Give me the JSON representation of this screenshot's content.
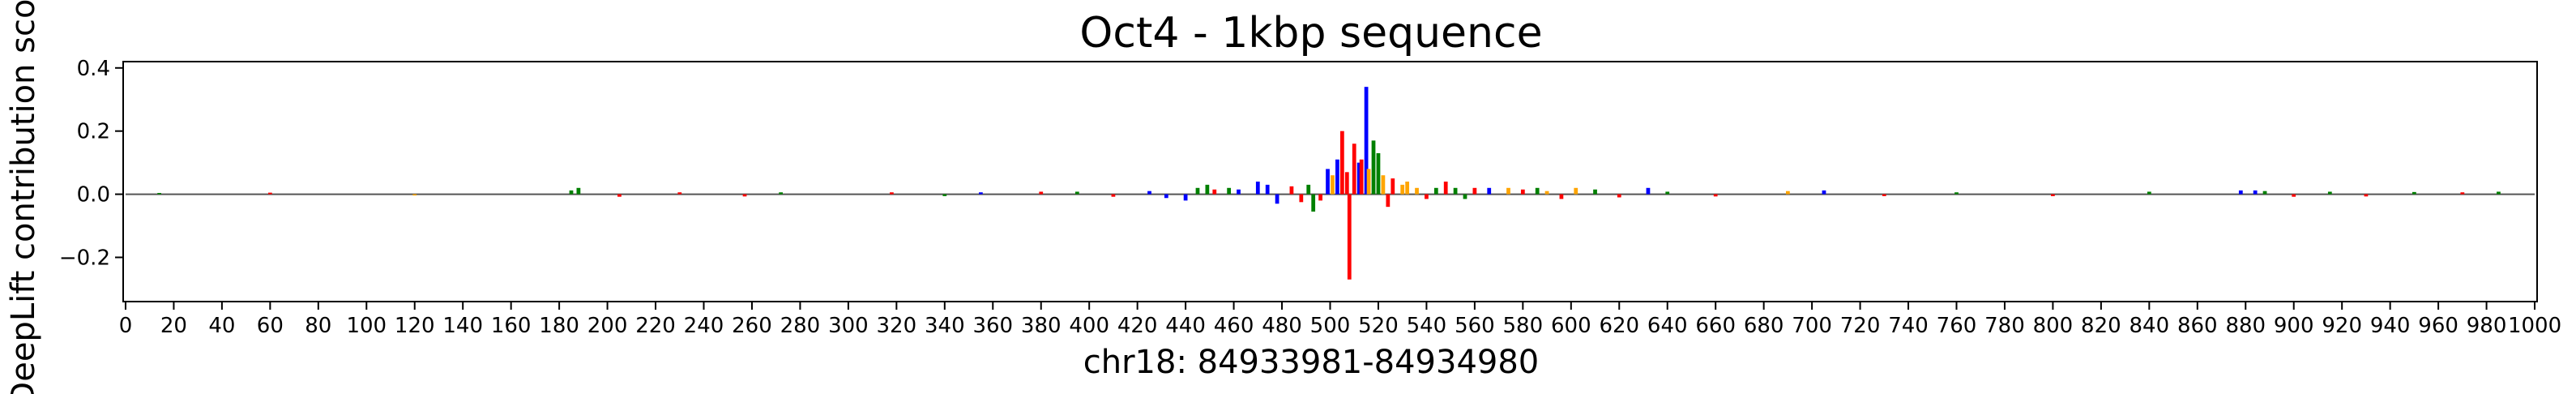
{
  "chart_data": {
    "type": "bar",
    "title": "Oct4 - 1kbp sequence",
    "xlabel": "chr18: 84933981-84934980",
    "ylabel": "DeepLift contribution score",
    "xlim": [
      -1,
      1001
    ],
    "ylim": [
      -0.34,
      0.42
    ],
    "xticks": [
      0,
      20,
      40,
      60,
      80,
      100,
      120,
      140,
      160,
      180,
      200,
      220,
      240,
      260,
      280,
      300,
      320,
      340,
      360,
      380,
      400,
      420,
      440,
      460,
      480,
      500,
      520,
      540,
      560,
      580,
      600,
      620,
      640,
      660,
      680,
      700,
      720,
      740,
      760,
      780,
      800,
      820,
      840,
      860,
      880,
      900,
      920,
      940,
      960,
      980,
      1000
    ],
    "xtick_labels": [
      "0",
      "20",
      "40",
      "60",
      "80",
      "100",
      "120",
      "140",
      "160",
      "180",
      "200",
      "220",
      "240",
      "260",
      "280",
      "300",
      "320",
      "340",
      "360",
      "380",
      "400",
      "420",
      "440",
      "460",
      "480",
      "500",
      "520",
      "540",
      "560",
      "580",
      "600",
      "620",
      "640",
      "660",
      "680",
      "700",
      "720",
      "740",
      "760",
      "780",
      "800",
      "820",
      "840",
      "860",
      "880",
      "900",
      "920",
      "940",
      "960",
      "980",
      "1000"
    ],
    "yticks": [
      -0.2,
      0.0,
      0.2,
      0.4
    ],
    "ytick_labels": [
      "−0.2",
      "0.0",
      "0.2",
      "0.4"
    ],
    "grid": false,
    "legend": "none",
    "base_colors": {
      "A": "#008000",
      "C": "#0000ff",
      "G": "#ffa500",
      "T": "#ff0000"
    },
    "series": [
      {
        "position": 14,
        "base": "A",
        "value": 0.004
      },
      {
        "position": 60,
        "base": "T",
        "value": 0.005
      },
      {
        "position": 120,
        "base": "G",
        "value": -0.004
      },
      {
        "position": 185,
        "base": "A",
        "value": 0.012
      },
      {
        "position": 188,
        "base": "A",
        "value": 0.02
      },
      {
        "position": 205,
        "base": "T",
        "value": -0.008
      },
      {
        "position": 230,
        "base": "T",
        "value": 0.006
      },
      {
        "position": 257,
        "base": "T",
        "value": -0.007
      },
      {
        "position": 272,
        "base": "A",
        "value": 0.006
      },
      {
        "position": 318,
        "base": "T",
        "value": 0.006
      },
      {
        "position": 340,
        "base": "A",
        "value": -0.006
      },
      {
        "position": 355,
        "base": "C",
        "value": 0.006
      },
      {
        "position": 380,
        "base": "T",
        "value": 0.008
      },
      {
        "position": 395,
        "base": "A",
        "value": 0.008
      },
      {
        "position": 410,
        "base": "T",
        "value": -0.008
      },
      {
        "position": 425,
        "base": "C",
        "value": 0.01
      },
      {
        "position": 432,
        "base": "C",
        "value": -0.012
      },
      {
        "position": 440,
        "base": "C",
        "value": -0.02
      },
      {
        "position": 445,
        "base": "A",
        "value": 0.02
      },
      {
        "position": 449,
        "base": "A",
        "value": 0.03
      },
      {
        "position": 452,
        "base": "T",
        "value": 0.015
      },
      {
        "position": 458,
        "base": "A",
        "value": 0.02
      },
      {
        "position": 462,
        "base": "C",
        "value": 0.015
      },
      {
        "position": 470,
        "base": "C",
        "value": 0.04
      },
      {
        "position": 474,
        "base": "C",
        "value": 0.03
      },
      {
        "position": 478,
        "base": "C",
        "value": -0.03
      },
      {
        "position": 484,
        "base": "T",
        "value": 0.025
      },
      {
        "position": 488,
        "base": "T",
        "value": -0.025
      },
      {
        "position": 491,
        "base": "A",
        "value": 0.03
      },
      {
        "position": 493,
        "base": "A",
        "value": -0.055
      },
      {
        "position": 496,
        "base": "T",
        "value": -0.02
      },
      {
        "position": 499,
        "base": "C",
        "value": 0.08
      },
      {
        "position": 501,
        "base": "G",
        "value": 0.06
      },
      {
        "position": 503,
        "base": "C",
        "value": 0.11
      },
      {
        "position": 505,
        "base": "T",
        "value": 0.2
      },
      {
        "position": 507,
        "base": "T",
        "value": 0.07
      },
      {
        "position": 508,
        "base": "T",
        "value": -0.27
      },
      {
        "position": 510,
        "base": "T",
        "value": 0.16
      },
      {
        "position": 512,
        "base": "C",
        "value": 0.1
      },
      {
        "position": 513,
        "base": "T",
        "value": 0.11
      },
      {
        "position": 515,
        "base": "C",
        "value": 0.34
      },
      {
        "position": 516,
        "base": "G",
        "value": 0.08
      },
      {
        "position": 518,
        "base": "A",
        "value": 0.17
      },
      {
        "position": 520,
        "base": "A",
        "value": 0.13
      },
      {
        "position": 522,
        "base": "G",
        "value": 0.06
      },
      {
        "position": 524,
        "base": "T",
        "value": -0.04
      },
      {
        "position": 526,
        "base": "T",
        "value": 0.05
      },
      {
        "position": 530,
        "base": "G",
        "value": 0.03
      },
      {
        "position": 532,
        "base": "G",
        "value": 0.04
      },
      {
        "position": 536,
        "base": "G",
        "value": 0.02
      },
      {
        "position": 540,
        "base": "T",
        "value": -0.015
      },
      {
        "position": 544,
        "base": "A",
        "value": 0.02
      },
      {
        "position": 548,
        "base": "T",
        "value": 0.04
      },
      {
        "position": 552,
        "base": "A",
        "value": 0.02
      },
      {
        "position": 556,
        "base": "A",
        "value": -0.015
      },
      {
        "position": 560,
        "base": "T",
        "value": 0.02
      },
      {
        "position": 566,
        "base": "C",
        "value": 0.02
      },
      {
        "position": 574,
        "base": "G",
        "value": 0.02
      },
      {
        "position": 580,
        "base": "T",
        "value": 0.015
      },
      {
        "position": 586,
        "base": "A",
        "value": 0.02
      },
      {
        "position": 590,
        "base": "G",
        "value": 0.01
      },
      {
        "position": 596,
        "base": "T",
        "value": -0.015
      },
      {
        "position": 602,
        "base": "G",
        "value": 0.02
      },
      {
        "position": 610,
        "base": "A",
        "value": 0.015
      },
      {
        "position": 620,
        "base": "T",
        "value": -0.01
      },
      {
        "position": 632,
        "base": "C",
        "value": 0.02
      },
      {
        "position": 640,
        "base": "A",
        "value": 0.008
      },
      {
        "position": 660,
        "base": "T",
        "value": -0.007
      },
      {
        "position": 690,
        "base": "G",
        "value": 0.01
      },
      {
        "position": 705,
        "base": "C",
        "value": 0.012
      },
      {
        "position": 730,
        "base": "T",
        "value": -0.006
      },
      {
        "position": 760,
        "base": "A",
        "value": 0.006
      },
      {
        "position": 800,
        "base": "T",
        "value": -0.006
      },
      {
        "position": 840,
        "base": "A",
        "value": 0.008
      },
      {
        "position": 878,
        "base": "C",
        "value": 0.012
      },
      {
        "position": 884,
        "base": "C",
        "value": 0.012
      },
      {
        "position": 888,
        "base": "A",
        "value": 0.01
      },
      {
        "position": 900,
        "base": "T",
        "value": -0.008
      },
      {
        "position": 915,
        "base": "A",
        "value": 0.008
      },
      {
        "position": 930,
        "base": "T",
        "value": -0.007
      },
      {
        "position": 950,
        "base": "A",
        "value": 0.007
      },
      {
        "position": 970,
        "base": "T",
        "value": 0.006
      },
      {
        "position": 985,
        "base": "A",
        "value": 0.008
      }
    ]
  }
}
